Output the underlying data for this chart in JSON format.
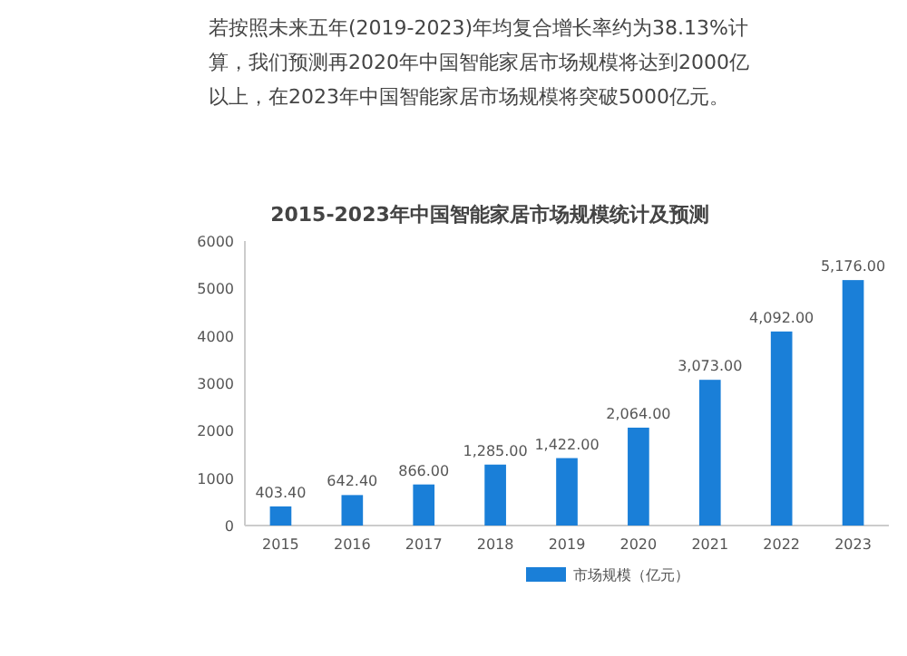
{
  "chart_data": {
    "type": "bar",
    "title": "2015-2023年中国智能家居市场规模统计及预测",
    "annotations": [
      "若按照未来五年(2019-2023)年均复合增长率约为38.13%计算，我们预测再2020年中国智能家居市场规模将达到2000亿以上，在2023年中国智能家居市场规模将突破5000亿元。"
    ],
    "categories": [
      "2015",
      "2016",
      "2017",
      "2018",
      "2019",
      "2020",
      "2021",
      "2022",
      "2023"
    ],
    "series": [
      {
        "name": "市场规模（亿元）",
        "color": "#1a7fd8",
        "values": [
          403.4,
          642.4,
          866,
          1285,
          1422,
          2064,
          3073,
          4092,
          5176
        ]
      }
    ],
    "value_labels": [
      "403.40",
      "642.40",
      "866.00",
      "1,285.00",
      "1,422.00",
      "2,064.00",
      "3,073.00",
      "4,092.00",
      "5,176.00"
    ],
    "ylim": [
      0,
      6000
    ],
    "yticks": [
      0,
      1000,
      2000,
      3000,
      4000,
      5000,
      6000
    ],
    "grid": false,
    "legend": "bottom"
  }
}
